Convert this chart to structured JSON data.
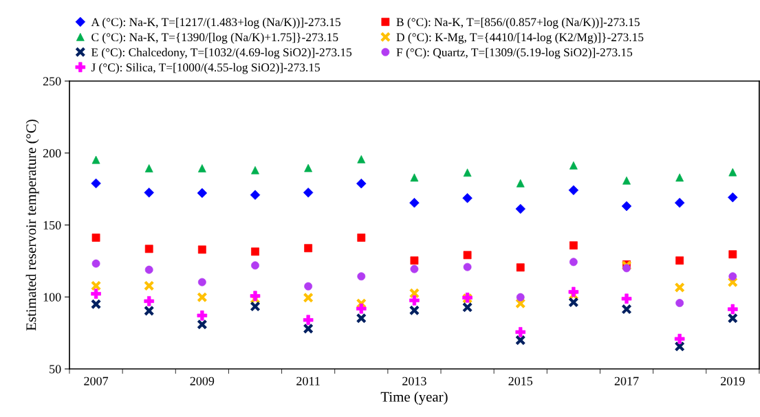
{
  "chart_data": {
    "type": "scatter",
    "xlabel": "Time (year)",
    "ylabel": "Estimated reservoir temperature (°C)",
    "categories": [
      "2007",
      null,
      "2009",
      null,
      "2011",
      null,
      "2013",
      null,
      "2015",
      null,
      "2017",
      null,
      "2019"
    ],
    "ylim": [
      50,
      250
    ],
    "yticks": [
      50,
      100,
      150,
      200,
      250
    ],
    "grid": false,
    "legend": "top",
    "series": [
      {
        "name": "A (°C): Na-K, T=[1217/(1.483+log (Na/K))]-273.15",
        "color": "#0000ff",
        "marker": "diamond",
        "values": [
          178.9,
          172.5,
          172.2,
          170.9,
          172.5,
          178.8,
          165.4,
          168.7,
          161.2,
          174.2,
          163.1,
          165.4,
          169.2
        ]
      },
      {
        "name": "B (°C): Na-K, T=[856/(0.857+log (Na/K))]-273.15",
        "color": "#ff0000",
        "marker": "square",
        "values": [
          141.2,
          133.4,
          132.9,
          131.5,
          133.9,
          141.2,
          125.3,
          129.1,
          120.5,
          135.8,
          122.6,
          125.3,
          129.6
        ]
      },
      {
        "name": "C (°C): Na-K, T={1390/[log (Na/K)+1.75]}-273.15",
        "color": "#00b050",
        "marker": "triangle",
        "values": [
          195.3,
          189.4,
          189.4,
          188.1,
          189.6,
          195.7,
          183.0,
          186.4,
          179.0,
          191.4,
          180.9,
          183.0,
          186.7
        ]
      },
      {
        "name": "D (°C): K-Mg, T={4410/[14-log (K2/Mg)]}-273.15",
        "color": "#ffc000",
        "marker": "cross",
        "values": [
          107.8,
          107.8,
          99.8,
          98.7,
          99.5,
          95.5,
          102.6,
          99.0,
          95.5,
          101.4,
          121.8,
          106.6,
          110.3
        ]
      },
      {
        "name": "E (°C): Chalcedony, T=[1032/(4.69-log SiO2)]-273.15",
        "color": "#002060",
        "marker": "cross",
        "values": [
          95.0,
          90.4,
          80.9,
          93.4,
          78.0,
          85.2,
          90.7,
          92.8,
          70.0,
          96.3,
          91.5,
          65.6,
          85.2
        ]
      },
      {
        "name": "F (°C): Quartz, T=[1309/(5.19-log SiO2)]-273.15",
        "color": "#b23cf2",
        "marker": "circle",
        "values": [
          123.2,
          118.9,
          110.3,
          121.9,
          107.4,
          114.3,
          119.4,
          120.8,
          99.8,
          124.3,
          120.0,
          95.8,
          114.3
        ]
      },
      {
        "name": "J (°C): Silica, T=[1000/(4.55-log SiO2)]-273.15",
        "color": "#ff00ff",
        "marker": "plus",
        "values": [
          102.2,
          97.1,
          87.1,
          100.7,
          84.0,
          91.9,
          97.6,
          99.5,
          75.6,
          103.5,
          98.8,
          70.9,
          91.5
        ]
      }
    ]
  }
}
